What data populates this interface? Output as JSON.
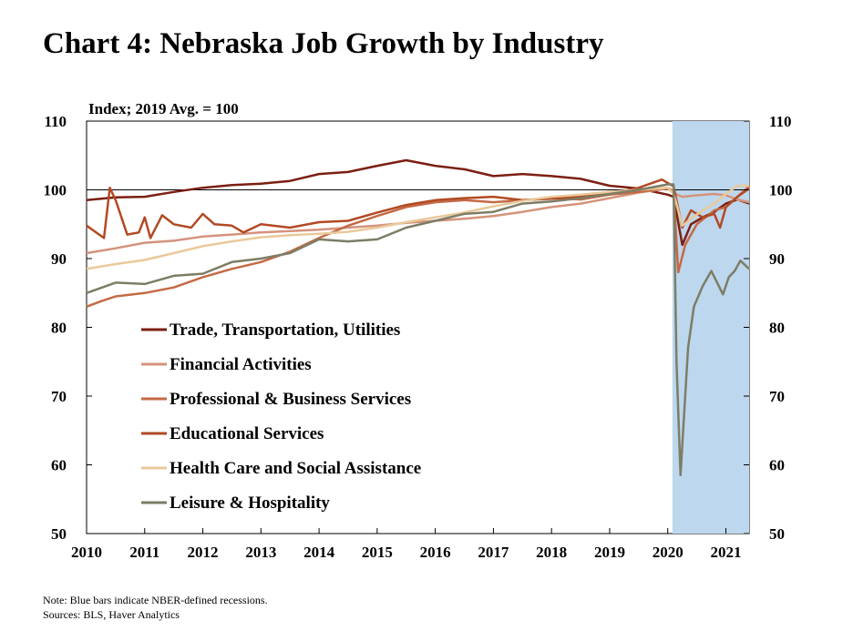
{
  "title": "Chart 4: Nebraska Job Growth by Industry",
  "notes": {
    "note": "Note: Blue bars indicate NBER-defined recessions.",
    "sources": "Sources: BLS, Haver Analytics"
  },
  "colors": {
    "recession": "#bdd7ee",
    "trade": "#7b1f12",
    "financial": "#d4937b",
    "professional": "#c46a45",
    "educational": "#b24a24",
    "health": "#e9c99a",
    "leisure": "#7d7d66"
  },
  "chart_data": {
    "type": "line",
    "ylabel": "Index; 2019 Avg. = 100",
    "ylim": [
      50,
      110
    ],
    "yticks": [
      50,
      60,
      70,
      80,
      90,
      100,
      110
    ],
    "xlim": [
      2010,
      2021.4
    ],
    "xticks": [
      2010,
      2011,
      2012,
      2013,
      2014,
      2015,
      2016,
      2017,
      2018,
      2019,
      2020,
      2021
    ],
    "reference_line": 100,
    "recession_shading": [
      [
        2020.08,
        2021.4
      ]
    ],
    "legend_position": "left-middle",
    "series": [
      {
        "name": "Trade, Transportation, Utilities",
        "color_key": "trade",
        "x": [
          2010,
          2010.5,
          2011,
          2011.5,
          2012,
          2012.5,
          2013,
          2013.5,
          2014,
          2014.5,
          2015,
          2015.5,
          2016,
          2016.5,
          2017,
          2017.5,
          2018,
          2018.5,
          2019,
          2019.5,
          2020,
          2020.1,
          2020.25,
          2020.4,
          2020.6,
          2020.8,
          2021,
          2021.2,
          2021.4
        ],
        "y": [
          98.5,
          98.9,
          99,
          99.7,
          100.3,
          100.7,
          100.9,
          101.3,
          102.3,
          102.6,
          103.5,
          104.3,
          103.5,
          103,
          102,
          102.3,
          102,
          101.6,
          100.6,
          100.2,
          99.3,
          99,
          92,
          95,
          96,
          96.8,
          98,
          98.6,
          98
        ]
      },
      {
        "name": "Financial Activities",
        "color_key": "financial",
        "x": [
          2010,
          2010.5,
          2011,
          2011.5,
          2012,
          2012.5,
          2013,
          2013.5,
          2014,
          2014.5,
          2015,
          2015.5,
          2016,
          2016.5,
          2017,
          2017.5,
          2018,
          2018.5,
          2019,
          2019.5,
          2020,
          2020.1,
          2020.25,
          2020.5,
          2020.8,
          2021,
          2021.2,
          2021.4
        ],
        "y": [
          90.8,
          91.5,
          92.3,
          92.6,
          93.2,
          93.5,
          93.8,
          94,
          94.2,
          94.5,
          94.8,
          95.2,
          95.5,
          95.8,
          96.2,
          96.8,
          97.5,
          98,
          98.8,
          99.6,
          100.2,
          99.5,
          99,
          99.2,
          99.4,
          99.2,
          98.6,
          98.2
        ]
      },
      {
        "name": "Professional & Business Services",
        "color_key": "professional",
        "x": [
          2010,
          2010.25,
          2010.5,
          2011,
          2011.5,
          2012,
          2012.5,
          2013,
          2013.5,
          2014,
          2014.5,
          2015,
          2015.5,
          2016,
          2016.5,
          2017,
          2017.5,
          2018,
          2018.5,
          2019,
          2019.5,
          2020,
          2020.1,
          2020.18,
          2020.3,
          2020.5,
          2020.8,
          2021,
          2021.2,
          2021.4
        ],
        "y": [
          83,
          83.8,
          84.5,
          85,
          85.8,
          87.3,
          88.5,
          89.5,
          91,
          93,
          94.8,
          96.2,
          97.5,
          98.2,
          98.5,
          98.2,
          98.5,
          98.8,
          98.6,
          99.3,
          99.7,
          100.3,
          99.8,
          88,
          92,
          95,
          97,
          97.5,
          99,
          100.5
        ]
      },
      {
        "name": "Educational Services",
        "color_key": "educational",
        "x": [
          2010,
          2010.3,
          2010.4,
          2010.5,
          2010.7,
          2010.9,
          2011,
          2011.1,
          2011.3,
          2011.5,
          2011.8,
          2012,
          2012.2,
          2012.5,
          2012.7,
          2013,
          2013.5,
          2014,
          2014.5,
          2015,
          2015.5,
          2016,
          2016.5,
          2017,
          2017.5,
          2018,
          2018.5,
          2019,
          2019.5,
          2019.9,
          2020.1,
          2020.25,
          2020.4,
          2020.6,
          2020.8,
          2020.9,
          2021,
          2021.2,
          2021.4
        ],
        "y": [
          94.8,
          93,
          100.3,
          98.5,
          93.5,
          93.8,
          96,
          93,
          96.3,
          95,
          94.5,
          96.5,
          95,
          94.8,
          93.8,
          95,
          94.5,
          95.3,
          95.5,
          96.7,
          97.8,
          98.5,
          98.8,
          99,
          98.5,
          98.7,
          99,
          99.4,
          100.3,
          101.5,
          100.5,
          94.5,
          97,
          96,
          96.5,
          94.5,
          97.5,
          99,
          100.2
        ]
      },
      {
        "name": "Health Care and Social Assistance",
        "color_key": "health",
        "x": [
          2010,
          2010.5,
          2011,
          2011.5,
          2012,
          2012.5,
          2013,
          2013.5,
          2014,
          2014.5,
          2015,
          2015.5,
          2016,
          2016.5,
          2017,
          2017.5,
          2018,
          2018.5,
          2019,
          2019.5,
          2020,
          2020.1,
          2020.25,
          2020.4,
          2020.6,
          2020.8,
          2021,
          2021.2,
          2021.4
        ],
        "y": [
          88.5,
          89.2,
          89.8,
          90.8,
          91.8,
          92.5,
          93.1,
          93.4,
          93.6,
          93.9,
          94.5,
          95.3,
          96,
          96.7,
          97.6,
          98.4,
          99,
          99.3,
          99.7,
          100,
          100.3,
          99.5,
          94.8,
          95.8,
          97,
          98,
          99.4,
          100.6,
          100.6
        ]
      },
      {
        "name": "Leisure & Hospitality",
        "color_key": "leisure",
        "x": [
          2010,
          2010.5,
          2011,
          2011.5,
          2012,
          2012.5,
          2013,
          2013.5,
          2014,
          2014.5,
          2015,
          2015.5,
          2016,
          2016.5,
          2017,
          2017.5,
          2018,
          2018.5,
          2019,
          2019.5,
          2020,
          2020.1,
          2020.15,
          2020.22,
          2020.35,
          2020.45,
          2020.6,
          2020.75,
          2020.85,
          2020.95,
          2021.05,
          2021.15,
          2021.25,
          2021.4
        ],
        "y": [
          85,
          86.5,
          86.3,
          87.5,
          87.8,
          89.5,
          90,
          90.8,
          92.8,
          92.5,
          92.8,
          94.5,
          95.5,
          96.5,
          96.8,
          98,
          98.3,
          98.8,
          99.4,
          100,
          100.8,
          100.8,
          75,
          58.5,
          77,
          83,
          86,
          88.2,
          86.5,
          84.8,
          87.3,
          88.2,
          89.7,
          88.5
        ]
      }
    ]
  }
}
